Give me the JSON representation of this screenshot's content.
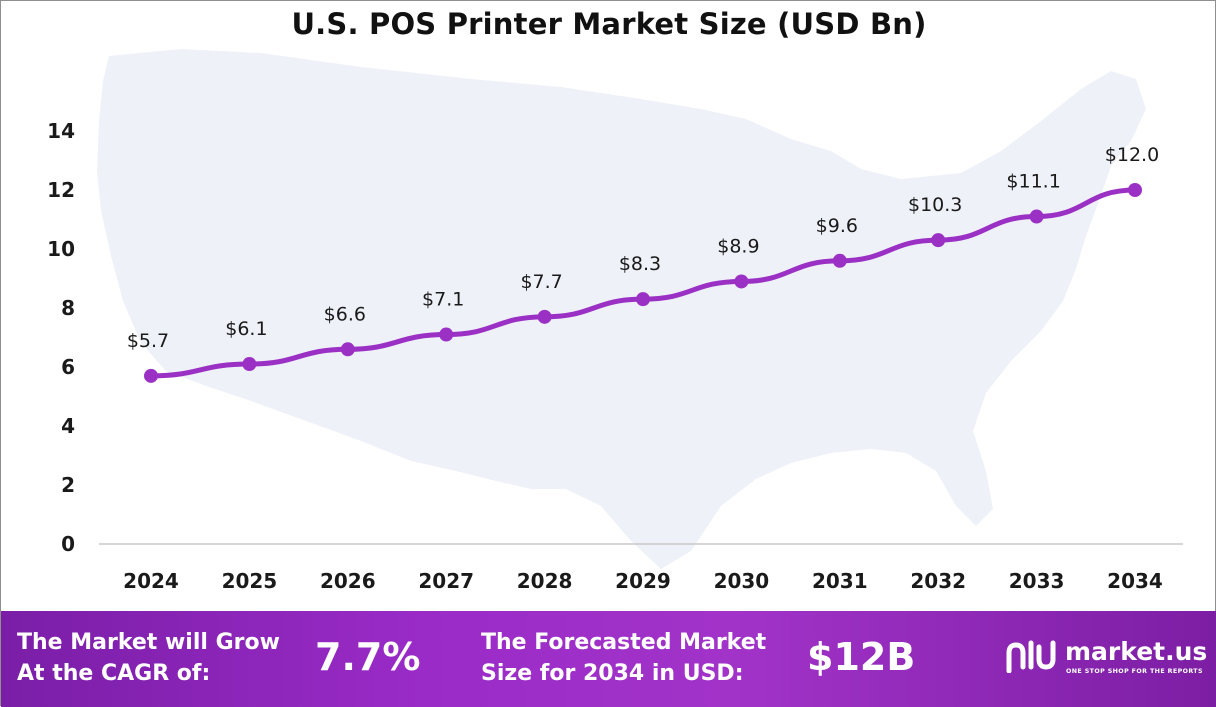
{
  "chart_data": {
    "type": "line",
    "title": "U.S. POS Printer Market Size (USD Bn)",
    "xlabel": "",
    "ylabel": "",
    "categories": [
      "2024",
      "2025",
      "2026",
      "2027",
      "2028",
      "2029",
      "2030",
      "2031",
      "2032",
      "2033",
      "2034"
    ],
    "values": [
      5.7,
      6.1,
      6.6,
      7.1,
      7.7,
      8.3,
      8.9,
      9.6,
      10.3,
      11.1,
      12.0
    ],
    "data_labels": [
      "$5.7",
      "$6.1",
      "$6.6",
      "$7.1",
      "$7.7",
      "$8.3",
      "$8.9",
      "$9.6",
      "$10.3",
      "$11.1",
      "$12.0"
    ],
    "y_ticks": [
      "0",
      "2",
      "4",
      "6",
      "8",
      "10",
      "12",
      "14"
    ],
    "ylim": [
      0,
      14
    ],
    "grid": false,
    "legend": "none",
    "line_color": "#9b30c4",
    "background_shape": "united-states-map"
  },
  "footer": {
    "cagr_label_line1": "The Market will Grow",
    "cagr_label_line2": "At the CAGR of:",
    "cagr_value": "7.7%",
    "forecast_label_line1": "The Forecasted Market",
    "forecast_label_line2": "Size for 2034 in USD:",
    "forecast_value": "$12B"
  },
  "brand": {
    "name": "market.us",
    "tagline": "ONE STOP SHOP FOR THE REPORTS",
    "icon": "market-us-logo-icon"
  },
  "colors": {
    "accent": "#9b30c4",
    "footer_start": "#7a1ea7",
    "footer_end": "#a233c9",
    "map_fill": "#eef1f8"
  }
}
